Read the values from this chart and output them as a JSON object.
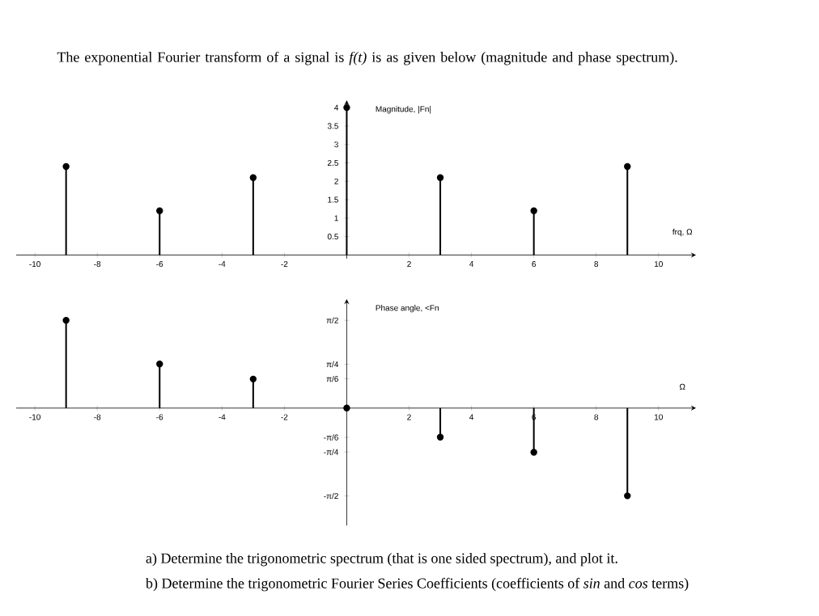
{
  "chart_data": [
    {
      "type": "lollipop",
      "title": "The exponential Fourier transform of a signal is *f(t)* is as given below (magnitude and phase spectrum).",
      "xlabel": "frq, Ω",
      "ylabel": "Magnitude, |Fn|",
      "x": [
        -9,
        -6,
        -3,
        0,
        3,
        6,
        9
      ],
      "series": [
        {
          "color": "#000000",
          "values": [
            2.4,
            1.2,
            2.1,
            4,
            2.1,
            1.2,
            2.4
          ]
        }
      ],
      "xlim": [
        -10.6,
        11.2
      ],
      "ylim": [
        -0.1,
        4.2
      ],
      "xticks": [
        -10,
        -8,
        -6,
        -4,
        -2,
        2,
        4,
        6,
        8,
        10
      ],
      "yticks": [
        0.5,
        1,
        1.5,
        2,
        2.5,
        3,
        3.5,
        4
      ],
      "marker": "circle"
    },
    {
      "type": "lollipop",
      "xlabel": "Ω",
      "ylabel": "Phase angle, <Fn",
      "x": [
        -9,
        -6,
        -3,
        0,
        3,
        6,
        9
      ],
      "series": [
        {
          "color": "#000000",
          "values": [
            1.57,
            0.79,
            0.52,
            0,
            -0.52,
            -0.79,
            -1.57
          ]
        }
      ],
      "xlim": [
        -10.6,
        11.2
      ],
      "ylim": [
        -2.1,
        1.95
      ],
      "xticks": [
        -10,
        -8,
        -6,
        -4,
        -2,
        2,
        4,
        6,
        8,
        10
      ],
      "yticks": [
        {
          "value": 1.571,
          "label": "π/2"
        },
        {
          "value": 0.785,
          "label": "π/4"
        },
        {
          "value": 0.524,
          "label": "π/6"
        },
        {
          "value": -0.524,
          "label": "-π/6"
        },
        {
          "value": -0.785,
          "label": "-π/4"
        },
        {
          "value": -1.571,
          "label": "-π/2"
        }
      ],
      "marker": "circle",
      "annotations": [
        "a) Determine the trigonometric spectrum (that is one sided spectrum), and plot it.",
        "b) Determine the trigonometric Fourier Series Coefficients (coefficients of *sin* and *cos* terms)"
      ]
    }
  ]
}
